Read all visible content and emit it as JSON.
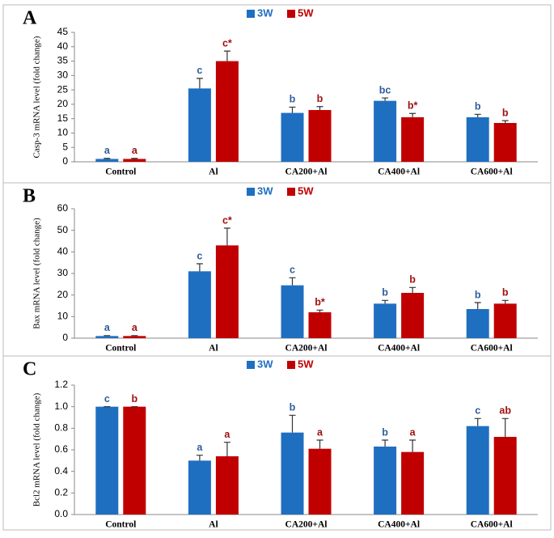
{
  "chart_data": [
    {
      "type": "bar",
      "panel_label": "A",
      "y_label": "Casp-3 mRNA level (fold change)",
      "categories": [
        "Control",
        "Al",
        "CA200+Al",
        "CA400+Al",
        "CA600+Al"
      ],
      "series": [
        {
          "name": "3W",
          "color": "#1f6fc1",
          "letter_color": "#2e5d9c",
          "values": [
            1,
            25.5,
            17,
            21.2,
            15.5
          ],
          "errors": [
            0.2,
            3.5,
            2,
            1,
            1
          ],
          "letters": [
            "a",
            "c",
            "b",
            "bc",
            "b"
          ]
        },
        {
          "name": "5W",
          "color": "#c00000",
          "letter_color": "#a01010",
          "values": [
            1,
            35,
            18,
            15.5,
            13.5
          ],
          "errors": [
            0.2,
            3.5,
            1.2,
            1.3,
            0.8
          ],
          "letters": [
            "a",
            "c*",
            "b",
            "b*",
            "b"
          ]
        }
      ],
      "ylim": [
        0,
        45
      ],
      "yticks": [
        0,
        5,
        10,
        15,
        20,
        25,
        30,
        35,
        40,
        45
      ]
    },
    {
      "type": "bar",
      "panel_label": "B",
      "y_label": "Bax mRNA level (fold change)",
      "categories": [
        "Control",
        "Al",
        "CA200+Al",
        "CA400+Al",
        "CA600+Al"
      ],
      "series": [
        {
          "name": "3W",
          "color": "#1f6fc1",
          "letter_color": "#2e5d9c",
          "values": [
            1,
            31,
            24.5,
            16,
            13.5
          ],
          "errors": [
            0.2,
            3.5,
            3.5,
            1.5,
            3
          ],
          "letters": [
            "a",
            "c",
            "c",
            "b",
            "b"
          ]
        },
        {
          "name": "5W",
          "color": "#c00000",
          "letter_color": "#a01010",
          "values": [
            1,
            43,
            12,
            21,
            16
          ],
          "errors": [
            0.2,
            8,
            1,
            2.5,
            1.5
          ],
          "letters": [
            "a",
            "c*",
            "b*",
            "b",
            "b"
          ]
        }
      ],
      "ylim": [
        0,
        60
      ],
      "yticks": [
        0,
        10,
        20,
        30,
        40,
        50,
        60
      ]
    },
    {
      "type": "bar",
      "panel_label": "C",
      "y_label": "Bcl2 mRNA level (fold change)",
      "categories": [
        "Control",
        "Al",
        "CA200+Al",
        "CA400+Al",
        "CA600+Al"
      ],
      "series": [
        {
          "name": "3W",
          "color": "#1f6fc1",
          "letter_color": "#2e5d9c",
          "values": [
            1.0,
            0.5,
            0.76,
            0.63,
            0.82
          ],
          "errors": [
            0,
            0.05,
            0.16,
            0.06,
            0.07
          ],
          "letters": [
            "c",
            "a",
            "b",
            "b",
            "c"
          ]
        },
        {
          "name": "5W",
          "color": "#c00000",
          "letter_color": "#a01010",
          "values": [
            1.0,
            0.54,
            0.61,
            0.58,
            0.72
          ],
          "errors": [
            0,
            0.13,
            0.08,
            0.11,
            0.17
          ],
          "letters": [
            "b",
            "a",
            "a",
            "a",
            "ab"
          ]
        }
      ],
      "ylim": [
        0,
        1.2
      ],
      "yticks": [
        {
          "value": 0,
          "label": "0.0"
        },
        0.2,
        0.4,
        0.6,
        0.8,
        {
          "value": 1,
          "label": "1.0"
        },
        1.2
      ]
    }
  ]
}
